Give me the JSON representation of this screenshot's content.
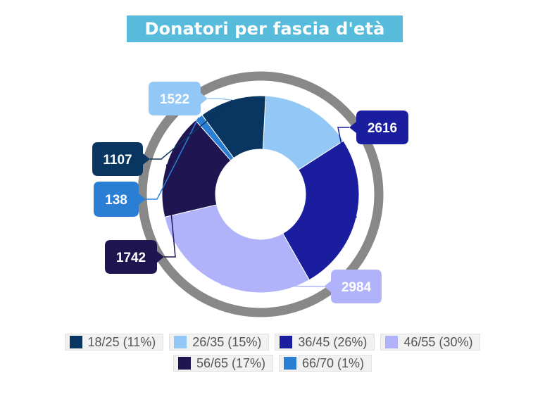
{
  "chart_data": {
    "type": "donut",
    "title": "Donatori per fascia d'età",
    "slices": [
      {
        "name": "18/25",
        "value": 1107,
        "percent_label": "18/25 (11%)",
        "color": "#083660"
      },
      {
        "name": "26/35",
        "value": 1522,
        "percent_label": "26/35 (15%)",
        "color": "#93c7f5"
      },
      {
        "name": "36/45",
        "value": 2616,
        "percent_label": "36/45 (26%)",
        "color": "#1a1d9e"
      },
      {
        "name": "46/55",
        "value": 2984,
        "percent_label": "46/55 (30%)",
        "color": "#b0b2fa"
      },
      {
        "name": "56/65",
        "value": 1742,
        "percent_label": "56/65 (17%)",
        "color": "#1f1550"
      },
      {
        "name": "66/70",
        "value": 138,
        "percent_label": "66/70 (1%)",
        "color": "#2a7fd4"
      }
    ],
    "draw_order": [
      "26/35",
      "36/45",
      "46/55",
      "56/65",
      "66/70",
      "18/25"
    ],
    "start_angle_deg": 3,
    "outer_ring_color": "#888888",
    "legend_position": "bottom"
  }
}
